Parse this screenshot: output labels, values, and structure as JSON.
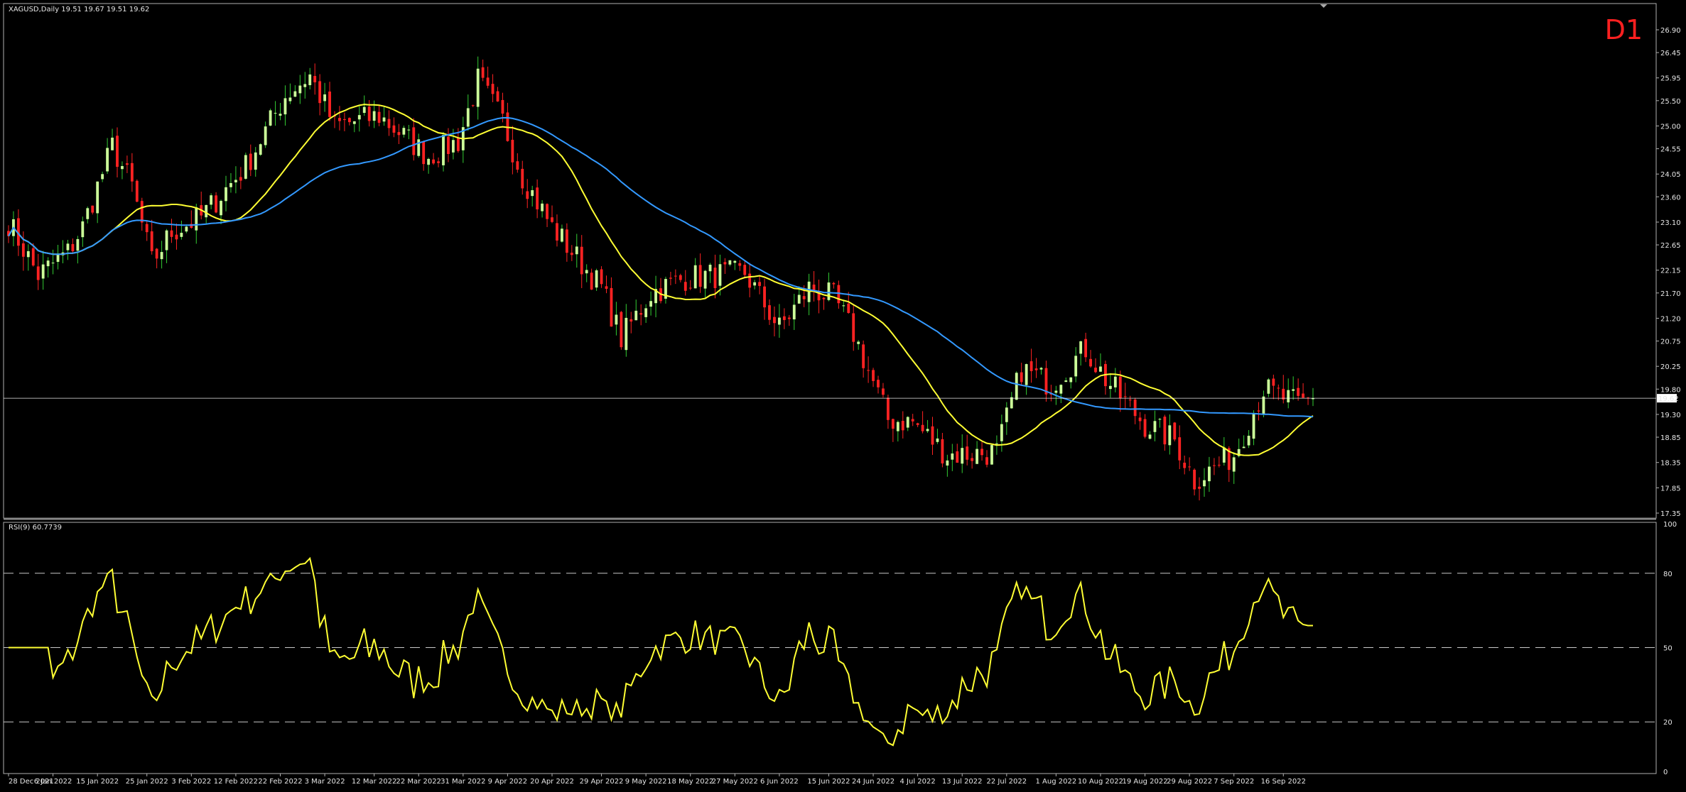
{
  "chart_data": [
    {
      "type": "candlestick",
      "title": "XAGUSD,Daily",
      "ohlc_header": "19.51 19.67 19.51 19.62",
      "timeframe": "D1",
      "ylim": [
        17.35,
        26.9
      ],
      "y_ticks": [
        "26.90",
        "26.45",
        "25.95",
        "25.50",
        "25.00",
        "24.55",
        "24.05",
        "23.60",
        "23.10",
        "22.65",
        "22.15",
        "21.70",
        "21.20",
        "20.75",
        "20.25",
        "19.80",
        "19.30",
        "18.85",
        "18.35",
        "17.85",
        "17.35"
      ],
      "current_price_label": "19.62",
      "current_price": 19.62,
      "x_ticks": [
        "28 Dec 2021",
        "6 Jan 2022",
        "15 Jan 2022",
        "25 Jan 2022",
        "3 Feb 2022",
        "12 Feb 2022",
        "22 Feb 2022",
        "3 Mar 2022",
        "12 Mar 2022",
        "22 Mar 2022",
        "31 Mar 2022",
        "9 Apr 2022",
        "20 Apr 2022",
        "29 Apr 2022",
        "9 May 2022",
        "18 May 2022",
        "27 May 2022",
        "6 Jun 2022",
        "15 Jun 2022",
        "24 Jun 2022",
        "4 Jul 2022",
        "13 Jul 2022",
        "22 Jul 2022",
        "1 Aug 2022",
        "10 Aug 2022",
        "19 Aug 2022",
        "29 Aug 2022",
        "7 Sep 2022",
        "16 Sep 2022"
      ],
      "close_anchors": [
        [
          0,
          23.1
        ],
        [
          6,
          22.05
        ],
        [
          12,
          22.5
        ],
        [
          15,
          23.0
        ],
        [
          21,
          24.6
        ],
        [
          25,
          23.8
        ],
        [
          29,
          22.3
        ],
        [
          33,
          22.9
        ],
        [
          39,
          23.2
        ],
        [
          48,
          24.2
        ],
        [
          56,
          25.6
        ],
        [
          61,
          26.0
        ],
        [
          66,
          25.0
        ],
        [
          75,
          25.2
        ],
        [
          85,
          24.4
        ],
        [
          91,
          24.7
        ],
        [
          95,
          25.9
        ],
        [
          100,
          25.1
        ],
        [
          104,
          24.0
        ],
        [
          110,
          23.0
        ],
        [
          120,
          21.8
        ],
        [
          124,
          20.8
        ],
        [
          130,
          21.7
        ],
        [
          137,
          22.0
        ],
        [
          149,
          22.1
        ],
        [
          156,
          21.0
        ],
        [
          162,
          21.8
        ],
        [
          167,
          21.6
        ],
        [
          171,
          20.9
        ],
        [
          178,
          19.2
        ],
        [
          183,
          19.15
        ],
        [
          190,
          18.5
        ],
        [
          200,
          18.55
        ],
        [
          205,
          20.2
        ],
        [
          211,
          19.9
        ],
        [
          218,
          20.6
        ],
        [
          222,
          20.0
        ],
        [
          230,
          19.1
        ],
        [
          236,
          18.8
        ],
        [
          240,
          18.0
        ],
        [
          248,
          18.5
        ],
        [
          254,
          19.8
        ],
        [
          261,
          19.5
        ],
        [
          264,
          19.62
        ]
      ],
      "series": [
        {
          "name": "MA fast",
          "color": "#ffff33",
          "period": 20
        },
        {
          "name": "MA slow",
          "color": "#3399ff",
          "period": 50
        }
      ],
      "colors": {
        "up": "#ccff99",
        "down": "#ff2222",
        "wick_up": "#33cc33",
        "wick_down": "#ff2222",
        "grid_line": "#ffffff"
      }
    },
    {
      "type": "line",
      "title": "RSI(9) 60.7739",
      "ylim": [
        0,
        100
      ],
      "y_ticks": [
        "100",
        "80",
        "50",
        "20",
        "0"
      ],
      "levels": [
        80,
        50,
        20
      ],
      "color": "#ffff33",
      "rsi_period": 9
    }
  ]
}
